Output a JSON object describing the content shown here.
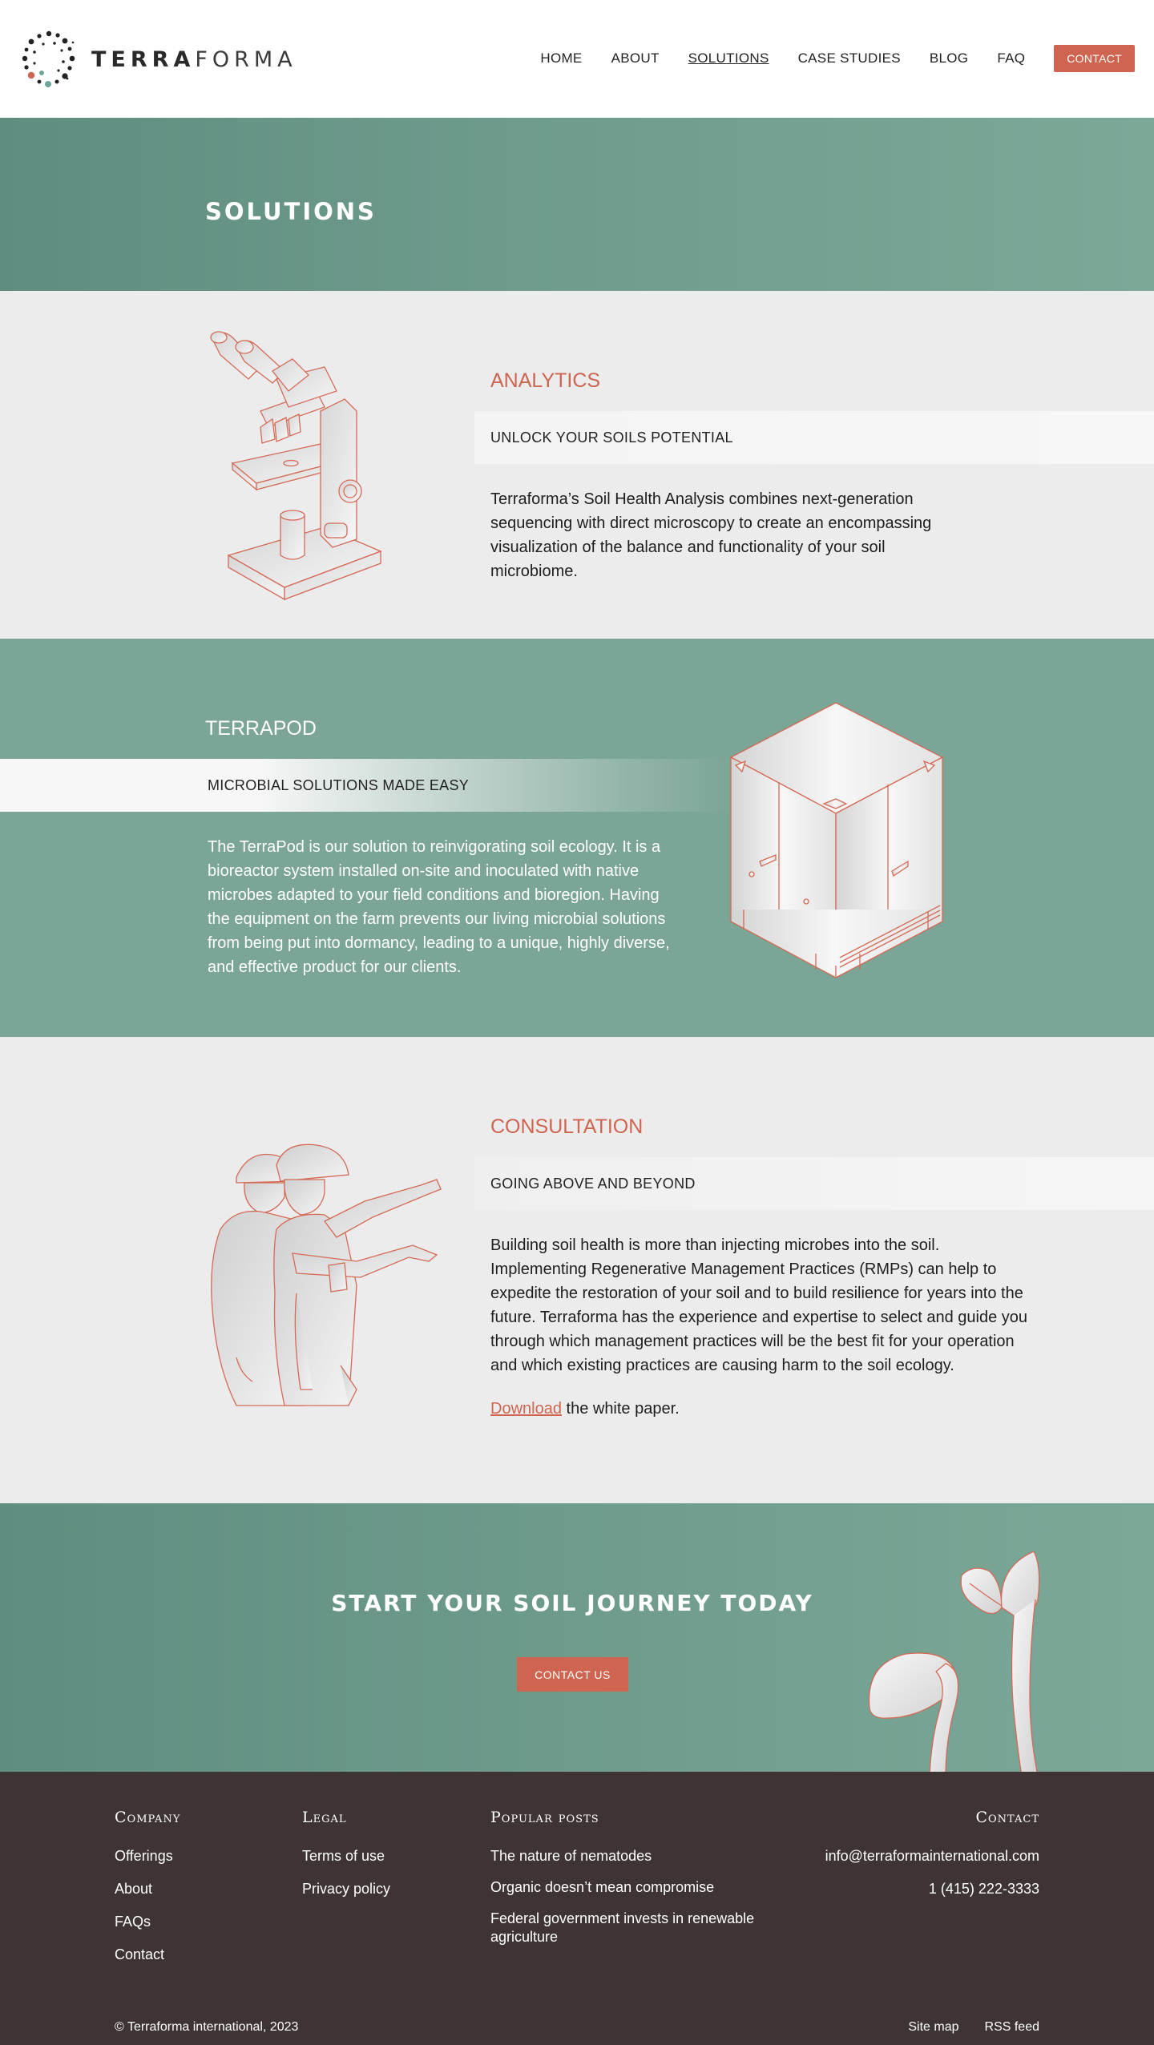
{
  "brand": {
    "name_bold": "TERRA",
    "name_light": "FORMA"
  },
  "nav": {
    "items": [
      {
        "label": "HOME",
        "active": false
      },
      {
        "label": "ABOUT",
        "active": false
      },
      {
        "label": "SOLUTIONS",
        "active": true
      },
      {
        "label": "CASE STUDIES",
        "active": false
      },
      {
        "label": "BLOG",
        "active": false
      },
      {
        "label": "FAQ",
        "active": false
      }
    ],
    "contact_label": "CONTACT"
  },
  "hero": {
    "title": "SOLUTIONS"
  },
  "analytics": {
    "title": "ANALYTICS",
    "subtitle": "UNLOCK YOUR SOILS POTENTIAL",
    "body": "Terraforma’s Soil Health Analysis combines next-generation sequencing with direct microscopy to create an encompassing visualization of the balance and functionality of your soil microbiome.",
    "illustration": "microscope-illustration"
  },
  "terrapod": {
    "title": "TERRAPOD",
    "subtitle": "MICROBIAL SOLUTIONS MADE EASY",
    "body": "The TerraPod is our solution to reinvigorating soil ecology. It is a bioreactor system installed on-site and inoculated with native microbes adapted to your field conditions and bioregion. Having the equipment on the farm prevents our living microbial solutions from being put into dormancy, leading to a unique, highly diverse, and effective product for our clients.",
    "illustration": "bioreactor-tank-illustration"
  },
  "consultation": {
    "title": "CONSULTATION",
    "subtitle": "GOING ABOVE AND BEYOND",
    "body": "Building soil health is more than injecting microbes into the soil. Implementing Regenerative Management Practices (RMPs) can help to expedite the restoration of your soil and to build resilience for years into the future. Terraforma has the experience and expertise to select and guide you through which management practices will be the best fit for your operation and which existing practices are causing harm to the soil ecology.",
    "download_link": "Download",
    "download_suffix": " the white paper.",
    "illustration": "engineers-pointing-illustration"
  },
  "cta": {
    "title": "START YOUR SOIL JOURNEY TODAY",
    "button_label": "CONTACT US",
    "illustration": "sprouts-illustration"
  },
  "footer": {
    "company": {
      "heading": "Company",
      "links": [
        "Offerings",
        "About",
        "FAQs",
        "Contact"
      ]
    },
    "legal": {
      "heading": "Legal",
      "links": [
        "Terms of use",
        "Privacy policy"
      ]
    },
    "popular": {
      "heading": "Popular posts",
      "links": [
        "The nature of nematodes",
        "Organic doesn’t mean compromise",
        "Federal government invests in renewable agriculture"
      ]
    },
    "contact": {
      "heading": "Contact",
      "email": "info@terraformainternational.com",
      "phone": "1 (415) 222-3333"
    },
    "copyright": "© Terraforma international, 2023",
    "bottom_links": [
      "Site map",
      "RSS feed"
    ]
  },
  "colors": {
    "accent": "#cf6550",
    "green": "#7ba596",
    "green_dark": "#5f8d7f",
    "light_bg": "#ececec",
    "footer_bg": "#3d3433"
  }
}
